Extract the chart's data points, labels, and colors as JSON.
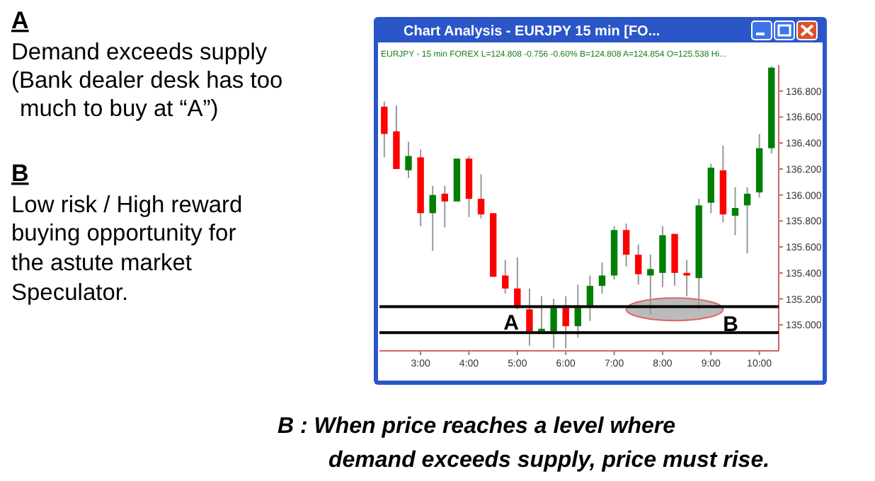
{
  "chart_data": {
    "type": "candlestick",
    "title": "Chart Analysis - EURJPY  15 min  [FO...",
    "subtitle": "EURJPY - 15 min  FOREX  L=124.808  -0.756  -0.60%  B=124.808  A=124.854  O=125.538  Hi...",
    "x": [
      2.25,
      2.5,
      2.75,
      3,
      3.25,
      3.5,
      3.75,
      4,
      4.25,
      4.5,
      4.75,
      5,
      5.25,
      5.5,
      5.75,
      6,
      6.25,
      6.5,
      6.75,
      7,
      7.25,
      7.5,
      7.75,
      8,
      8.25,
      8.5,
      8.75,
      9,
      9.25,
      9.5,
      9.75,
      10,
      10.25
    ],
    "ohlc": [
      [
        136.68,
        136.72,
        136.29,
        136.47
      ],
      [
        136.49,
        136.69,
        136.2,
        136.2
      ],
      [
        136.19,
        136.41,
        136.13,
        136.3
      ],
      [
        136.29,
        136.35,
        135.76,
        135.86
      ],
      [
        135.86,
        136.07,
        135.57,
        136.0
      ],
      [
        136.01,
        136.07,
        135.75,
        135.95
      ],
      [
        135.95,
        136.28,
        135.95,
        136.28
      ],
      [
        136.28,
        136.3,
        135.83,
        135.97
      ],
      [
        135.97,
        136.16,
        135.82,
        135.85
      ],
      [
        135.86,
        135.86,
        135.37,
        135.37
      ],
      [
        135.38,
        135.5,
        135.24,
        135.28
      ],
      [
        135.28,
        135.52,
        135.12,
        135.13
      ],
      [
        135.12,
        135.28,
        134.84,
        134.95
      ],
      [
        134.95,
        135.22,
        134.95,
        134.97
      ],
      [
        134.95,
        135.2,
        134.82,
        135.13
      ],
      [
        135.13,
        135.22,
        134.82,
        134.99
      ],
      [
        134.99,
        135.31,
        134.9,
        135.13
      ],
      [
        135.15,
        135.38,
        135.03,
        135.3
      ],
      [
        135.3,
        135.48,
        135.24,
        135.38
      ],
      [
        135.38,
        135.76,
        135.35,
        135.73
      ],
      [
        135.73,
        135.78,
        135.45,
        135.54
      ],
      [
        135.54,
        135.62,
        135.31,
        135.39
      ],
      [
        135.38,
        135.54,
        135.08,
        135.43
      ],
      [
        135.4,
        135.76,
        135.29,
        135.69
      ],
      [
        135.7,
        135.7,
        135.3,
        135.4
      ],
      [
        135.4,
        135.5,
        135.22,
        135.38
      ],
      [
        135.36,
        135.97,
        135.12,
        135.92
      ],
      [
        135.94,
        136.24,
        135.86,
        136.21
      ],
      [
        136.19,
        136.38,
        135.79,
        135.85
      ],
      [
        135.84,
        136.06,
        135.69,
        135.9
      ],
      [
        135.92,
        136.06,
        135.55,
        136.01
      ],
      [
        136.02,
        136.47,
        135.98,
        136.36
      ],
      [
        136.36,
        136.99,
        136.32,
        136.98
      ]
    ],
    "colors": [
      "#ff0000",
      "#ff0000",
      "#008000",
      "#ff0000",
      "#008000",
      "#ff0000",
      "#008000",
      "#ff0000",
      "#ff0000",
      "#ff0000",
      "#ff0000",
      "#ff0000",
      "#ff0000",
      "#008000",
      "#008000",
      "#ff0000",
      "#008000",
      "#008000",
      "#008000",
      "#008000",
      "#ff0000",
      "#ff0000",
      "#008000",
      "#008000",
      "#ff0000",
      "#ff0000",
      "#008000",
      "#008000",
      "#ff0000",
      "#008000",
      "#008000",
      "#008000",
      "#008000"
    ],
    "ref_lines": [
      {
        "axis": "y",
        "value": 135.14,
        "color": "#000000"
      },
      {
        "axis": "y",
        "value": 134.94,
        "color": "#000000"
      }
    ],
    "xlim": [
      2.15,
      10.4
    ],
    "ylim": [
      134.8,
      137.0
    ],
    "xticks": [
      {
        "value": 3,
        "label": "3:00"
      },
      {
        "value": 4,
        "label": "4:00"
      },
      {
        "value": 5,
        "label": "5:00"
      },
      {
        "value": 6,
        "label": "6:00"
      },
      {
        "value": 7,
        "label": "7:00"
      },
      {
        "value": 8,
        "label": "8:00"
      },
      {
        "value": 9,
        "label": "9:00"
      },
      {
        "value": 10,
        "label": "10:00"
      }
    ],
    "yticks": [
      {
        "value": 135,
        "label": "135.000"
      },
      {
        "value": 135.2,
        "label": "135.200"
      },
      {
        "value": 135.4,
        "label": "135.400"
      },
      {
        "value": 135.6,
        "label": "135.600"
      },
      {
        "value": 135.8,
        "label": "135.800"
      },
      {
        "value": 136,
        "label": "136.000"
      },
      {
        "value": 136.2,
        "label": "136.200"
      },
      {
        "value": 136.4,
        "label": "136.400"
      },
      {
        "value": 136.6,
        "label": "136.600"
      },
      {
        "value": 136.8,
        "label": "136.800"
      }
    ],
    "grid": false,
    "annotations": [
      "A",
      "B",
      "A",
      "Demand exceeds supply",
      "(Bank dealer desk has too",
      "much to buy at “A”)",
      "B",
      "Low risk / High reward",
      "buying opportunity for",
      "the astute market",
      "Speculator.",
      "B : When price reaches a level where",
      "demand exceeds supply, price must rise."
    ]
  }
}
